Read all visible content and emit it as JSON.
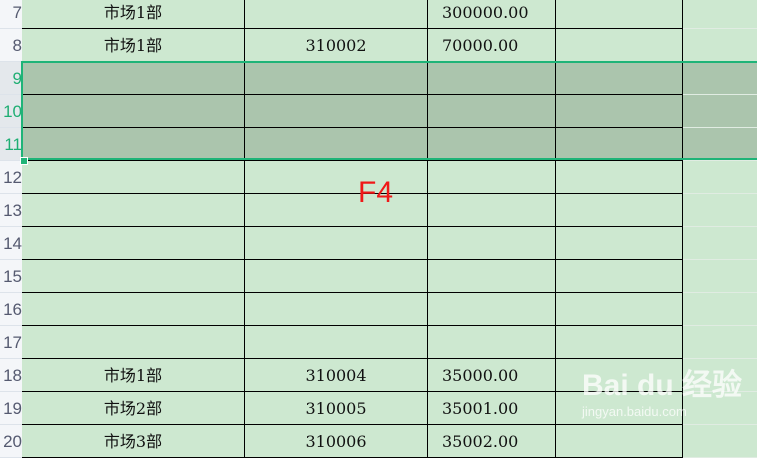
{
  "rows": [
    {
      "num": "7",
      "a": "市场1部",
      "b": "",
      "c": "300000.00",
      "d": "",
      "selected": false
    },
    {
      "num": "8",
      "a": "市场1部",
      "b": "310002",
      "c": "70000.00",
      "d": "",
      "selected": false
    },
    {
      "num": "9",
      "a": "",
      "b": "",
      "c": "",
      "d": "",
      "selected": true
    },
    {
      "num": "10",
      "a": "",
      "b": "",
      "c": "",
      "d": "",
      "selected": true
    },
    {
      "num": "11",
      "a": "",
      "b": "",
      "c": "",
      "d": "",
      "selected": true
    },
    {
      "num": "12",
      "a": "",
      "b": "",
      "c": "",
      "d": "",
      "selected": false
    },
    {
      "num": "13",
      "a": "",
      "b": "",
      "c": "",
      "d": "",
      "selected": false
    },
    {
      "num": "14",
      "a": "",
      "b": "",
      "c": "",
      "d": "",
      "selected": false
    },
    {
      "num": "15",
      "a": "",
      "b": "",
      "c": "",
      "d": "",
      "selected": false
    },
    {
      "num": "16",
      "a": "",
      "b": "",
      "c": "",
      "d": "",
      "selected": false
    },
    {
      "num": "17",
      "a": "",
      "b": "",
      "c": "",
      "d": "",
      "selected": false
    },
    {
      "num": "18",
      "a": "市场1部",
      "b": "310004",
      "c": "35000.00",
      "d": "",
      "selected": false
    },
    {
      "num": "19",
      "a": "市场2部",
      "b": "310005",
      "c": "35001.00",
      "d": "",
      "selected": false
    },
    {
      "num": "20",
      "a": "市场3部",
      "b": "310006",
      "c": "35002.00",
      "d": "",
      "selected": false
    }
  ],
  "annotation": "F4",
  "watermark": {
    "brand": "Bai du 经验",
    "url": "jingyan.baidu.com"
  },
  "colors": {
    "selection": "#1fb478",
    "cell": "#cde8d0",
    "annotation": "#f01818"
  }
}
